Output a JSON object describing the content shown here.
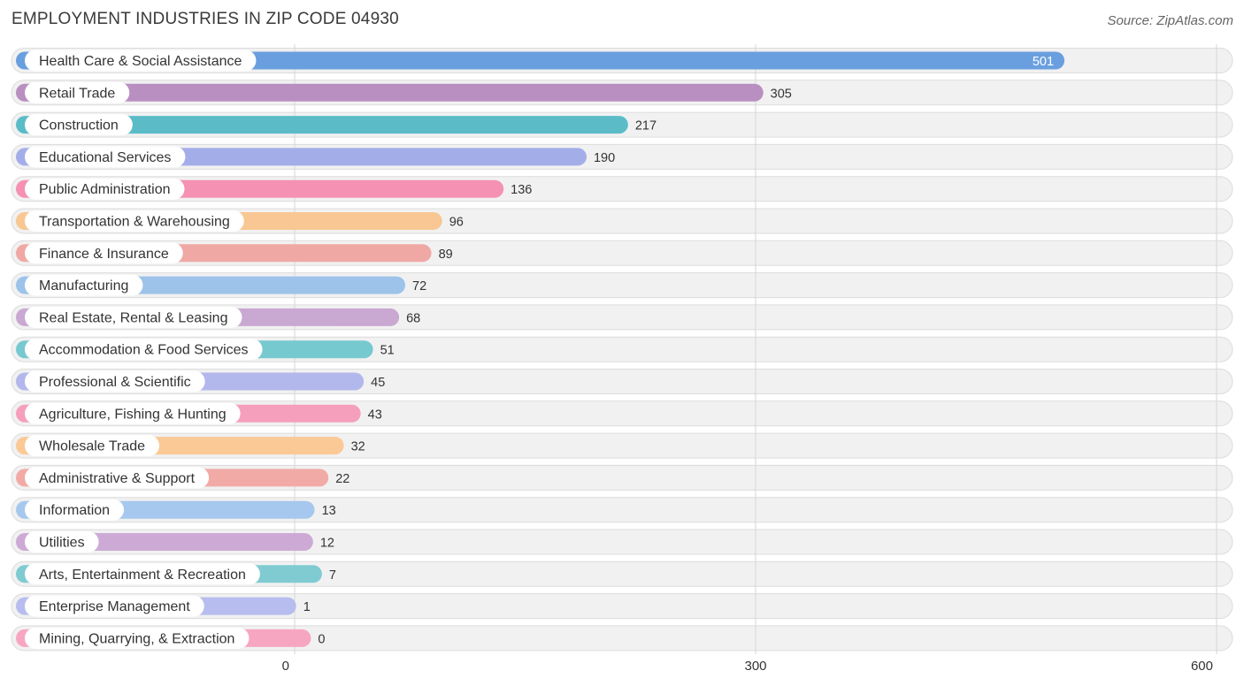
{
  "header": {
    "title": "EMPLOYMENT INDUSTRIES IN ZIP CODE 04930",
    "source": "Source: ZipAtlas.com"
  },
  "chart_data": {
    "type": "bar",
    "orientation": "horizontal",
    "title": "EMPLOYMENT INDUSTRIES IN ZIP CODE 04930",
    "xlabel": "",
    "ylabel": "",
    "xlim": [
      0,
      600
    ],
    "ticks": [
      0,
      300,
      600
    ],
    "tick_labels": [
      "0",
      "300",
      "600"
    ],
    "grid": true,
    "categories": [
      "Health Care & Social Assistance",
      "Retail Trade",
      "Construction",
      "Educational Services",
      "Public Administration",
      "Transportation & Warehousing",
      "Finance & Insurance",
      "Manufacturing",
      "Real Estate, Rental & Leasing",
      "Accommodation & Food Services",
      "Professional & Scientific",
      "Agriculture, Fishing & Hunting",
      "Wholesale Trade",
      "Administrative & Support",
      "Information",
      "Utilities",
      "Arts, Entertainment & Recreation",
      "Enterprise Management",
      "Mining, Quarrying, & Extraction"
    ],
    "values": [
      501,
      305,
      217,
      190,
      136,
      96,
      89,
      72,
      68,
      51,
      45,
      43,
      32,
      22,
      13,
      12,
      7,
      1,
      0
    ],
    "colors": [
      "#6a9fdf",
      "#b98fc2",
      "#5bbcc8",
      "#a3aee9",
      "#f591b2",
      "#f9c793",
      "#f0a8a4",
      "#9ec3ea",
      "#c9a8d2",
      "#76c9cf",
      "#b2b8ec",
      "#f69fbd",
      "#fbc996",
      "#f2aaa6",
      "#a6c8ee",
      "#cdaad6",
      "#80cbd2",
      "#b7bdee",
      "#f7a6c1"
    ]
  }
}
